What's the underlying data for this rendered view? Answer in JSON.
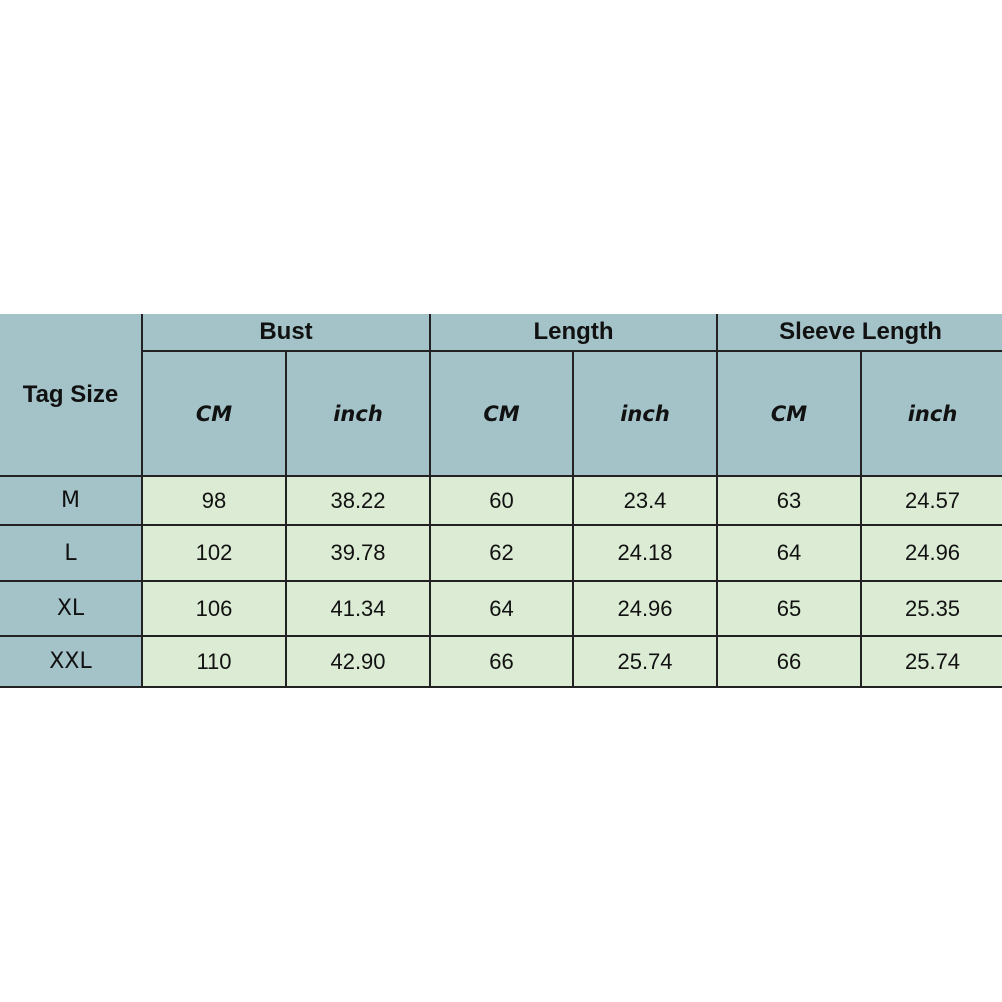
{
  "table": {
    "tag_size": "Tag Size",
    "groups": [
      "Bust",
      "Length",
      "Sleeve Length"
    ],
    "units": [
      "CM",
      "inch",
      "CM",
      "inch",
      "CM",
      "inch"
    ],
    "rows": [
      {
        "size": "M",
        "values": [
          "98",
          "38.22",
          "60",
          "23.4",
          "63",
          "24.57"
        ]
      },
      {
        "size": "L",
        "values": [
          "102",
          "39.78",
          "62",
          "24.18",
          "64",
          "24.96"
        ]
      },
      {
        "size": "XL",
        "values": [
          "106",
          "41.34",
          "64",
          "24.96",
          "65",
          "25.35"
        ]
      },
      {
        "size": "XXL",
        "values": [
          "110",
          "42.90",
          "66",
          "25.74",
          "66",
          "25.74"
        ]
      }
    ]
  },
  "colors": {
    "header": "#a3c3c9",
    "data": "#dcebd4"
  }
}
